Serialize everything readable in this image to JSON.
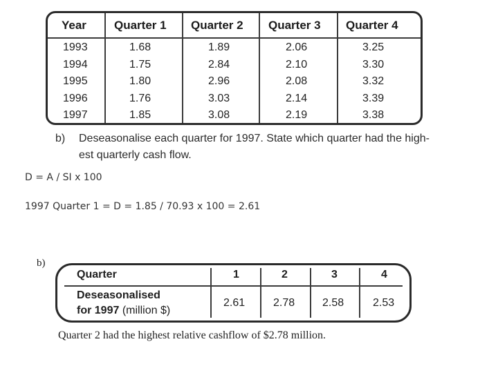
{
  "top_table": {
    "headers": [
      "Year",
      "Quarter 1",
      "Quarter 2",
      "Quarter 3",
      "Quarter 4"
    ],
    "rows": [
      [
        "1993",
        "1.68",
        "1.89",
        "2.06",
        "3.25"
      ],
      [
        "1994",
        "1.75",
        "2.84",
        "2.10",
        "3.30"
      ],
      [
        "1995",
        "1.80",
        "2.96",
        "2.08",
        "3.32"
      ],
      [
        "1996",
        "1.76",
        "3.03",
        "2.14",
        "3.39"
      ],
      [
        "1997",
        "1.85",
        "3.08",
        "2.19",
        "3.38"
      ]
    ]
  },
  "question": {
    "label": "b)",
    "line1": "Deseasonalise each quarter for 1997. State which quarter had the high-",
    "line2": "est quarterly cash flow."
  },
  "notes": {
    "formula": "D = A / SI x 100",
    "example": "1997 Quarter 1 = D = 1.85 / 70.93 x 100 = 2.61"
  },
  "answer": {
    "label": "b)",
    "header_label": "Quarter",
    "quarters": [
      "1",
      "2",
      "3",
      "4"
    ],
    "row_label_line1": "Deseasonalised",
    "row_label_line2_bold": "for 1997",
    "row_label_line2_rest": " (million $)",
    "values": [
      "2.61",
      "2.78",
      "2.58",
      "2.53"
    ],
    "conclusion": "Quarter 2 had the highest relative cashflow of $2.78 million."
  }
}
